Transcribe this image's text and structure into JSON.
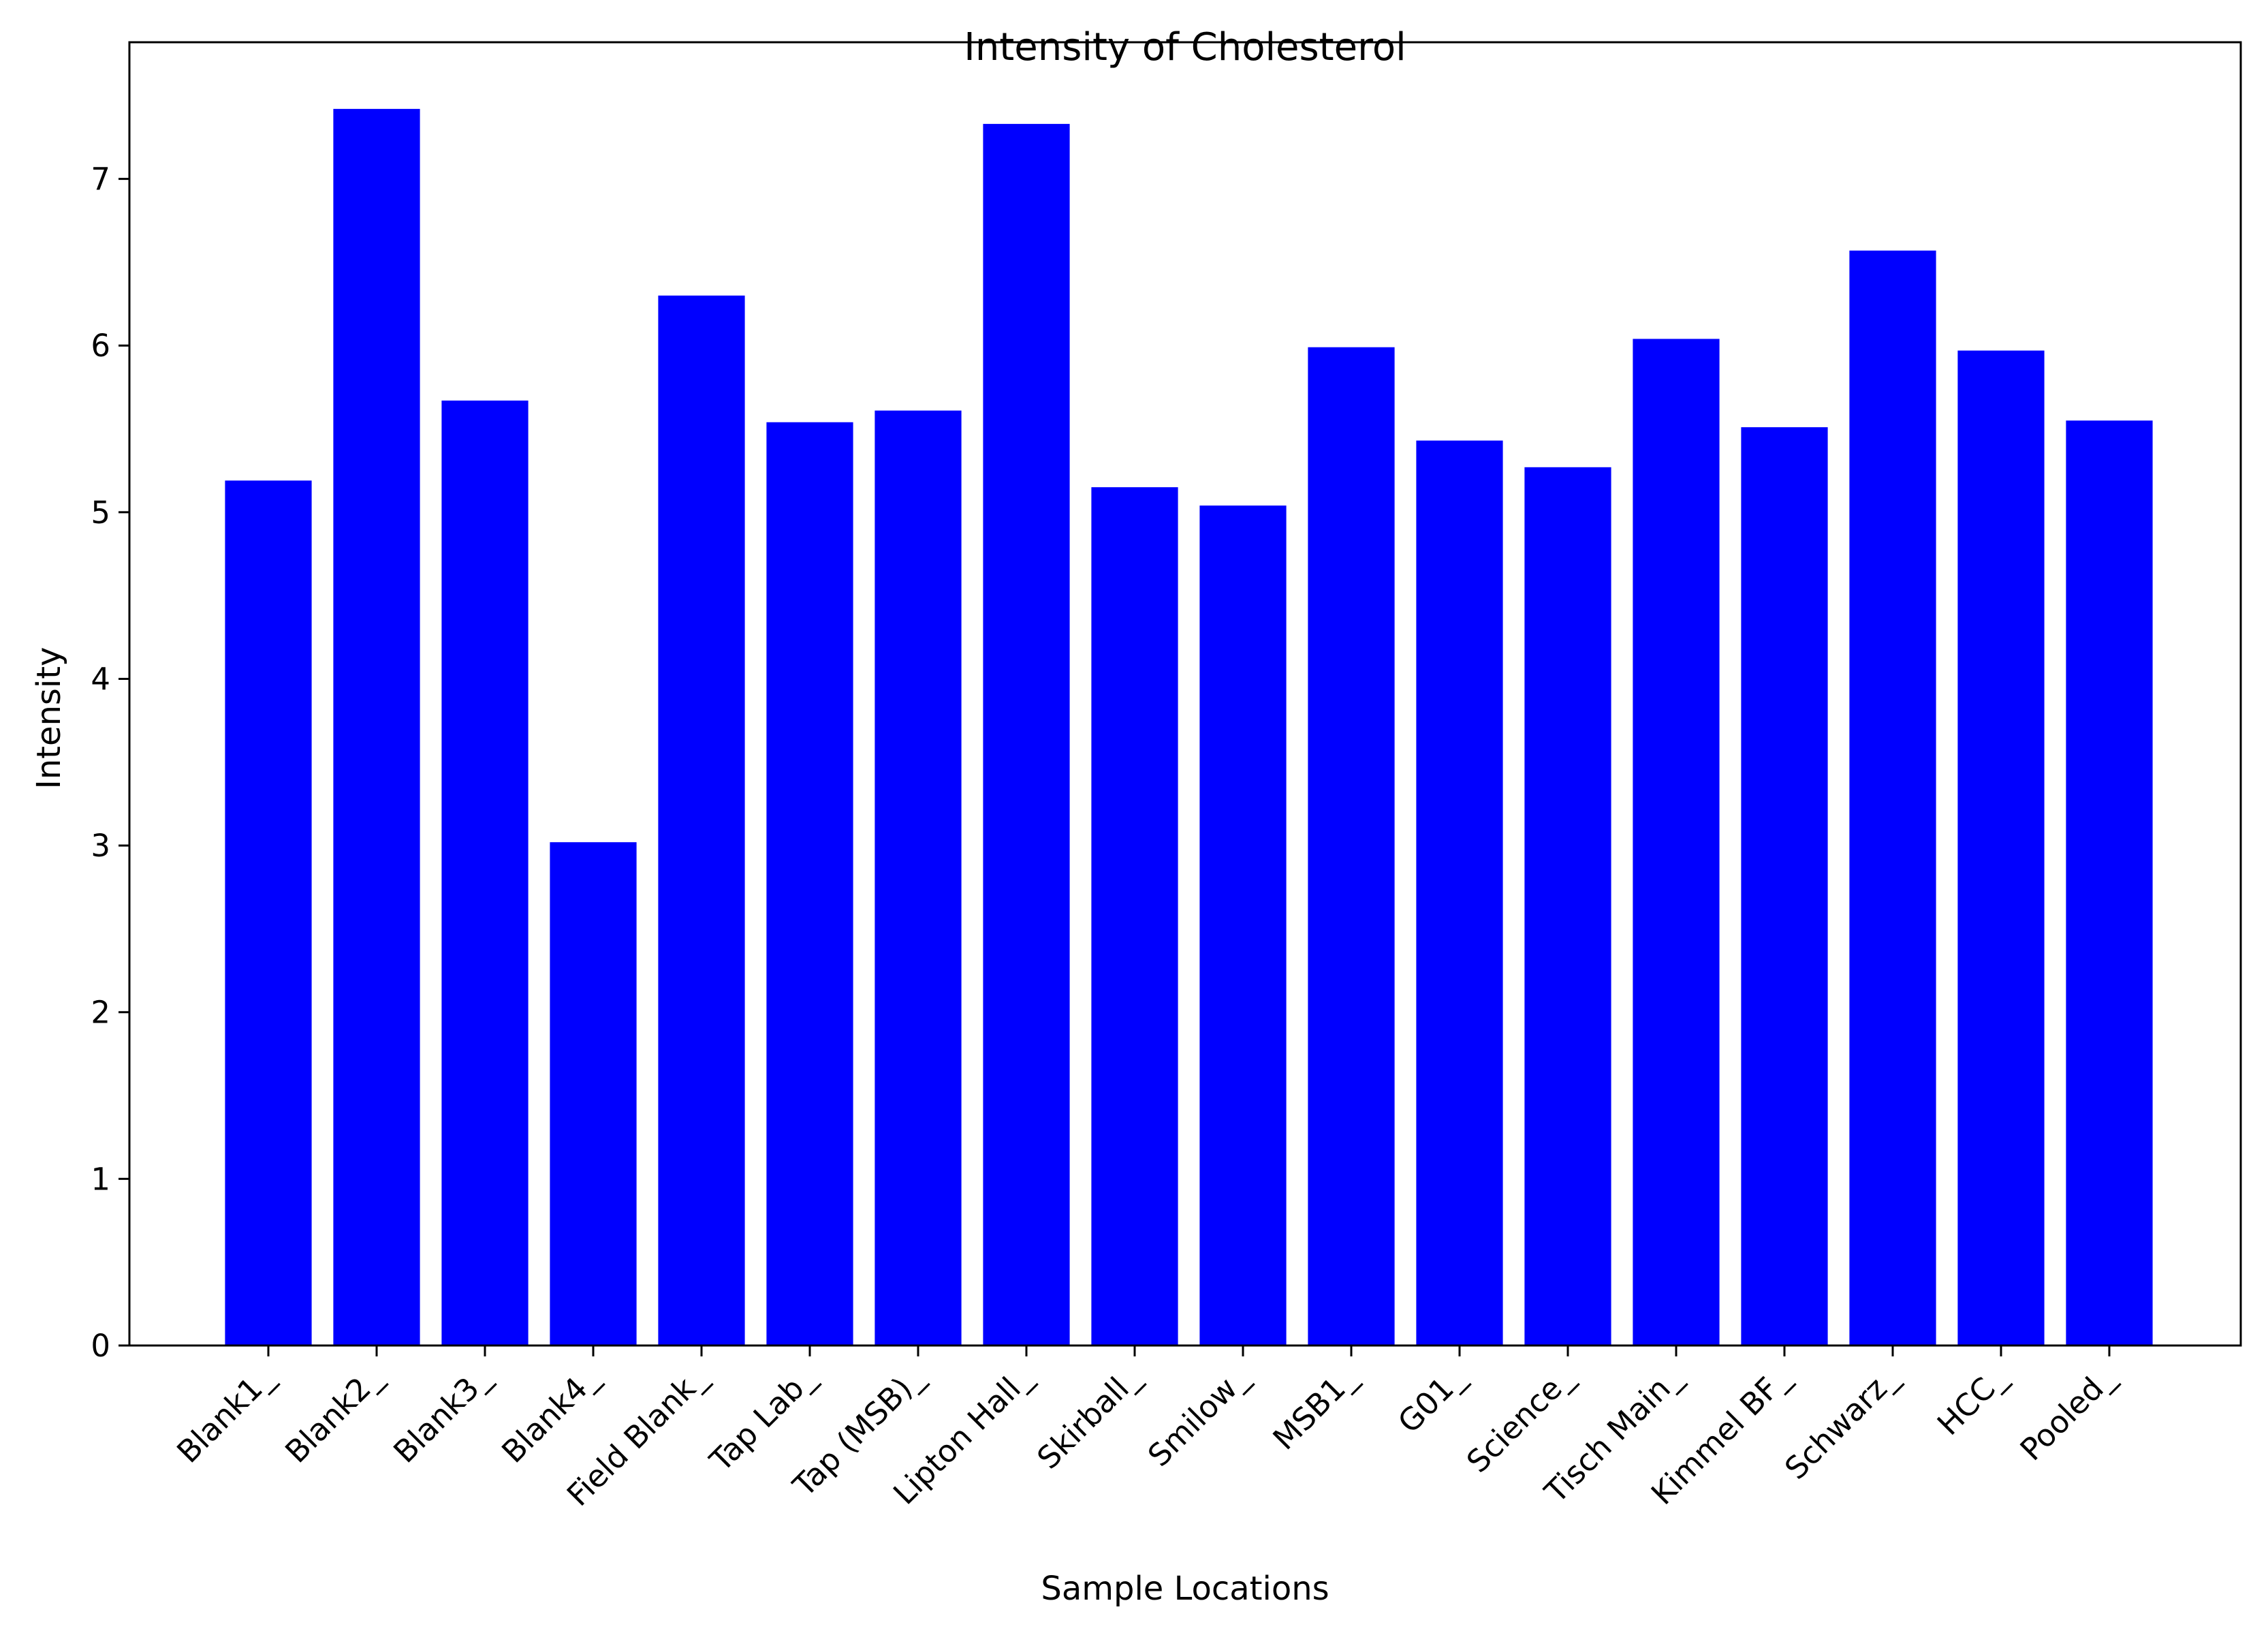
{
  "chart_data": {
    "type": "bar",
    "title": "Intensity of Cholesterol",
    "xlabel": "Sample Locations",
    "ylabel": "Intensity",
    "categories": [
      "Blank1_",
      "Blank2_",
      "Blank3_",
      "Blank4_",
      "Field Blank_",
      "Tap Lab_",
      "Tap (MSB)_",
      "Lipton Hall_",
      "Skirball_",
      "Smilow_",
      "MSB1_",
      "G01_",
      "Science_",
      "Tisch Main_",
      "Kimmel BF_",
      "Schwarz_",
      "HCC_",
      "Pooled_"
    ],
    "values": [
      5.19,
      7.42,
      5.67,
      3.02,
      6.3,
      5.54,
      5.61,
      7.33,
      5.15,
      5.04,
      5.99,
      5.43,
      5.27,
      6.04,
      5.51,
      6.57,
      5.97,
      5.55
    ],
    "ylim": [
      0,
      7.82
    ],
    "yticks": [
      0,
      1,
      2,
      3,
      4,
      5,
      6,
      7
    ],
    "bar_color": "#0000ff",
    "grid": false,
    "legend": "none"
  }
}
